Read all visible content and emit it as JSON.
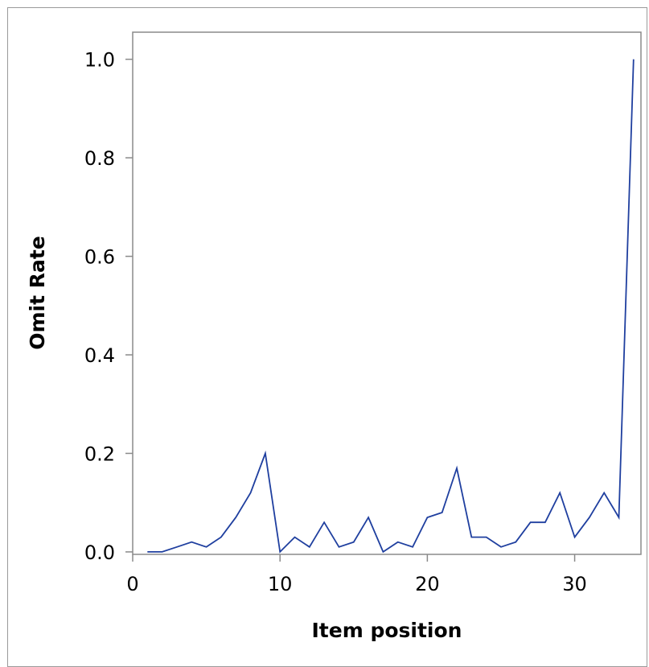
{
  "colors": {
    "line": "#1f3f9f",
    "axis": "#8a8a8a",
    "frame": "#9a9a9a",
    "background": "#ffffff"
  },
  "chart_data": {
    "type": "line",
    "title": "",
    "xlabel": "Item position",
    "ylabel": "Omit Rate",
    "xlim": [
      0,
      34.5
    ],
    "ylim": [
      -0.005,
      1.055
    ],
    "xticks": [
      0,
      10,
      20,
      30
    ],
    "yticks": [
      0.0,
      0.2,
      0.4,
      0.6,
      0.8,
      1.0
    ],
    "xtick_labels": [
      "0",
      "10",
      "20",
      "30"
    ],
    "ytick_labels": [
      "0.0",
      "0.2",
      "0.4",
      "0.6",
      "0.8",
      "1.0"
    ],
    "grid": false,
    "legend": false,
    "series": [
      {
        "x": [
          1,
          2,
          3,
          4,
          5,
          6,
          7,
          8,
          9,
          10,
          11,
          12,
          13,
          14,
          15,
          16,
          17,
          18,
          19,
          20,
          21,
          22,
          23,
          24,
          25,
          26,
          27,
          28,
          29,
          30,
          31,
          32,
          33,
          34
        ],
        "values": [
          0.0,
          0.0,
          0.01,
          0.02,
          0.01,
          0.03,
          0.07,
          0.12,
          0.2,
          0.0,
          0.03,
          0.01,
          0.06,
          0.01,
          0.02,
          0.07,
          0.0,
          0.02,
          0.01,
          0.07,
          0.08,
          0.17,
          0.03,
          0.03,
          0.01,
          0.02,
          0.06,
          0.06,
          0.12,
          0.03,
          0.07,
          0.12,
          0.07,
          1.0
        ]
      }
    ]
  }
}
